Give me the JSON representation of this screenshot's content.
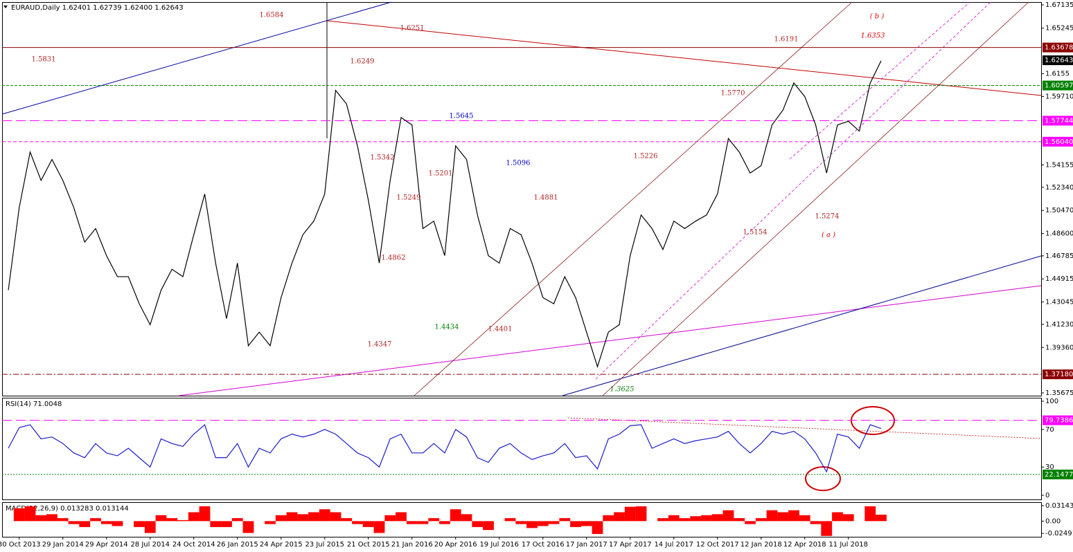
{
  "chart_data": [
    {
      "type": "line",
      "title": "EURAUD,Daily  1.62401 1.62739 1.62400 1.62643",
      "color": "#000000",
      "categories": [
        null,
        "30 Oct 2013",
        null,
        null,
        null,
        "29 Jan 2014",
        null,
        null,
        null,
        "29 Apr 2014",
        null,
        null,
        null,
        "28 Jul 2014",
        null,
        null,
        null,
        "24 Oct 2014",
        null,
        null,
        null,
        "26 Jan 2015",
        null,
        null,
        null,
        "24 Apr 2015",
        null,
        null,
        null,
        "23 Jul 2015",
        null,
        null,
        null,
        "21 Oct 2015",
        null,
        null,
        null,
        "21 Jan 2016",
        null,
        null,
        null,
        "20 Apr 2016",
        null,
        null,
        null,
        "19 Jul 2016",
        null,
        null,
        null,
        "17 Oct 2016",
        null,
        null,
        null,
        "17 Jan 2017",
        null,
        null,
        null,
        "17 Apr 2017",
        null,
        null,
        null,
        "14 Jul 2017",
        null,
        null,
        null,
        "12 Oct 2017",
        null,
        null,
        null,
        "12 Jan 2018",
        null,
        null,
        null,
        "12 Apr 2018",
        null,
        null,
        null,
        "11 Jul 2018",
        null,
        null,
        null
      ],
      "values": [
        1.44,
        1.507,
        1.552,
        1.529,
        1.546,
        1.529,
        1.507,
        1.479,
        1.49,
        1.468,
        1.451,
        1.451,
        1.429,
        1.412,
        1.44,
        1.457,
        1.451,
        1.485,
        1.518,
        1.462,
        1.417,
        1.462,
        1.395,
        1.406,
        1.395,
        1.434,
        1.462,
        1.485,
        1.496,
        1.518,
        1.602,
        1.591,
        1.557,
        1.513,
        1.462,
        1.529,
        1.58,
        1.574,
        1.49,
        1.496,
        1.468,
        1.557,
        1.546,
        1.501,
        1.468,
        1.462,
        1.49,
        1.485,
        1.462,
        1.434,
        1.429,
        1.451,
        1.434,
        1.406,
        1.378,
        1.406,
        1.412,
        1.468,
        1.501,
        1.49,
        1.473,
        1.496,
        1.49,
        1.496,
        1.501,
        1.518,
        1.563,
        1.552,
        1.535,
        1.541,
        1.574,
        1.586,
        1.608,
        1.597,
        1.574,
        1.535,
        1.574,
        1.577,
        1.569,
        1.608,
        1.626
      ],
      "ylim": [
        1.3545,
        1.6736
      ],
      "yticks": [
        1.67135,
        1.65245,
        1.6155,
        {
          "value": 1.5971,
          "label": "1.59710"
        },
        1.54155,
        {
          "value": 1.5234,
          "label": "1.52340"
        },
        {
          "value": 1.5047,
          "label": "1.50470"
        },
        {
          "value": 1.486,
          "label": "1.48600"
        },
        1.46785,
        1.44915,
        1.43045,
        {
          "value": 1.4123,
          "label": "1.41230"
        },
        {
          "value": 1.3936,
          "label": "1.39360"
        },
        1.35675
      ],
      "levels": [
        {
          "value": 1.63678,
          "label": "1.63678",
          "color": "#8b0000"
        },
        {
          "value": 1.60597,
          "label": "1.60597",
          "color": "#008000"
        },
        {
          "value": 1.57744,
          "label": "1.57744",
          "color": "#ff00ff"
        },
        {
          "value": 1.5604,
          "label": "1.56040",
          "color": "#ff00ff"
        },
        {
          "value": 1.3718,
          "label": "1.37180",
          "color": "#8b0000"
        }
      ],
      "last_price": 1.62643,
      "annotations": [
        {
          "text": "1.6584",
          "color": "#b22222"
        },
        {
          "text": "1.6251",
          "color": "#b22222"
        },
        {
          "text": "1.5831",
          "color": "#b22222"
        },
        {
          "text": "1.6249",
          "color": "#b22222"
        },
        {
          "text": "1.6191",
          "color": "#b22222"
        },
        {
          "text": "( b )",
          "color": "#e00000"
        },
        {
          "text": "1.6353",
          "color": "#e00000"
        },
        {
          "text": "1.5770",
          "color": "#b22222"
        },
        {
          "text": "1.5645",
          "color": "#0000cd"
        },
        {
          "text": "1.5342",
          "color": "#b22222"
        },
        {
          "text": "1.5201",
          "color": "#b22222"
        },
        {
          "text": "1.5096",
          "color": "#0000cd"
        },
        {
          "text": "1.5226",
          "color": "#b22222"
        },
        {
          "text": "1.5249",
          "color": "#b22222"
        },
        {
          "text": "1.4881",
          "color": "#b22222"
        },
        {
          "text": "1.4862",
          "color": "#b22222"
        },
        {
          "text": "1.5274",
          "color": "#b22222"
        },
        {
          "text": "1.5154",
          "color": "#b22222"
        },
        {
          "text": "( a )",
          "color": "#e00000"
        },
        {
          "text": "1.4434",
          "color": "#008000"
        },
        {
          "text": "1.4401",
          "color": "#b22222"
        },
        {
          "text": "1.4347",
          "color": "#b22222"
        },
        {
          "text": "1.3625",
          "color": "#008000"
        }
      ]
    },
    {
      "type": "line",
      "title": "RSI(14) 71.0048",
      "color": "#1c1cc8",
      "values": [
        50,
        72,
        75,
        60,
        62,
        55,
        45,
        40,
        55,
        45,
        42,
        50,
        40,
        30,
        60,
        55,
        52,
        65,
        75,
        40,
        40,
        55,
        30,
        50,
        45,
        60,
        65,
        62,
        65,
        70,
        65,
        55,
        45,
        40,
        30,
        60,
        65,
        45,
        45,
        55,
        45,
        70,
        62,
        40,
        35,
        50,
        55,
        45,
        38,
        42,
        45,
        55,
        40,
        42,
        28,
        60,
        65,
        74,
        75,
        50,
        55,
        60,
        55,
        58,
        60,
        62,
        68,
        55,
        45,
        55,
        68,
        65,
        68,
        60,
        45,
        25,
        65,
        62,
        50,
        75,
        71
      ],
      "ylim": [
        -4.4,
        103.7
      ],
      "yticks": [
        100,
        70,
        30,
        0
      ],
      "levels": [
        {
          "value": 79.7386,
          "label": "79.7386",
          "color": "#ff00ff"
        },
        {
          "value": 22.1477,
          "label": "22.1477",
          "color": "#008000"
        }
      ]
    },
    {
      "type": "bar",
      "title": "MACD(12,26,9) 0.013283 0.013144",
      "color": "#ff0000",
      "values": [
        0,
        0.026,
        0.03,
        0.012,
        0.014,
        0.006,
        -0.006,
        -0.012,
        0.006,
        -0.006,
        -0.01,
        0,
        -0.012,
        -0.024,
        0.012,
        0.006,
        0.002,
        0.018,
        0.03,
        -0.012,
        -0.012,
        0.006,
        -0.024,
        0,
        -0.006,
        0.012,
        0.018,
        0.014,
        0.018,
        0.024,
        0.018,
        0.006,
        -0.006,
        -0.012,
        -0.024,
        0.012,
        0.018,
        -0.006,
        -0.006,
        0.006,
        -0.006,
        0.024,
        0.014,
        -0.012,
        -0.018,
        0,
        0.006,
        -0.006,
        -0.014,
        -0.01,
        -0.006,
        0.006,
        -0.012,
        -0.01,
        -0.026,
        0.012,
        0.018,
        0.029,
        0.03,
        0,
        0.006,
        0.012,
        0.006,
        0.01,
        0.012,
        0.014,
        0.022,
        0.006,
        -0.006,
        0.006,
        0.022,
        0.018,
        0.022,
        0.012,
        -0.006,
        -0.03,
        0.018,
        0.014,
        0,
        0.03,
        0.013
      ],
      "ylim": [
        -0.0317,
        0.0383
      ],
      "yticks": [
        0.03143,
        {
          "value": 0,
          "label": "0.00"
        },
        -0.02491
      ]
    }
  ]
}
